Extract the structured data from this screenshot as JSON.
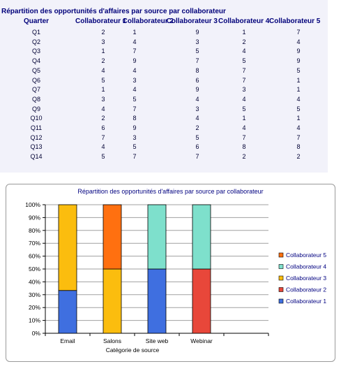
{
  "table": {
    "title": "Répartition des opportunités d'affaires par source par collaborateur",
    "headers": [
      "Quarter",
      "Collaborateur 1",
      "Collaborateur 2",
      "Collaborateur 3",
      "Collaborateur 4",
      "Collaborateur 5"
    ],
    "rows": [
      [
        "Q1",
        "2",
        "1",
        "9",
        "1",
        "7"
      ],
      [
        "Q2",
        "3",
        "4",
        "3",
        "2",
        "4"
      ],
      [
        "Q3",
        "1",
        "7",
        "5",
        "4",
        "9"
      ],
      [
        "Q4",
        "2",
        "9",
        "7",
        "5",
        "9"
      ],
      [
        "Q5",
        "4",
        "4",
        "8",
        "7",
        "5"
      ],
      [
        "Q6",
        "5",
        "3",
        "6",
        "7",
        "1"
      ],
      [
        "Q7",
        "1",
        "4",
        "9",
        "3",
        "1"
      ],
      [
        "Q8",
        "3",
        "5",
        "4",
        "4",
        "4"
      ],
      [
        "Q9",
        "4",
        "7",
        "3",
        "5",
        "5"
      ],
      [
        "Q10",
        "2",
        "8",
        "4",
        "1",
        "1"
      ],
      [
        "Q11",
        "6",
        "9",
        "2",
        "4",
        "4"
      ],
      [
        "Q12",
        "7",
        "3",
        "5",
        "7",
        "7"
      ],
      [
        "Q13",
        "4",
        "5",
        "6",
        "8",
        "8"
      ],
      [
        "Q14",
        "5",
        "7",
        "7",
        "2",
        "2"
      ]
    ]
  },
  "chart_data": {
    "type": "bar",
    "stacked": "percent",
    "title": "Répartition des opportunités d'affaires par source par collaborateur",
    "xlabel": "Catégorie de source",
    "ylabel": "",
    "categories": [
      "Email",
      "Salons",
      "Site web",
      "Webinar",
      ""
    ],
    "ylim": [
      0,
      100
    ],
    "yticks": [
      "0%",
      "10%",
      "20%",
      "30%",
      "40%",
      "50%",
      "60%",
      "70%",
      "80%",
      "90%",
      "100%"
    ],
    "grid": true,
    "legend_position": "right",
    "series": [
      {
        "name": "Collaborateur 1",
        "color": "#3f6fe0",
        "values": [
          33.3,
          0,
          50,
          0,
          0
        ]
      },
      {
        "name": "Collaborateur 2",
        "color": "#e8473a",
        "values": [
          0,
          0,
          0,
          50,
          0
        ]
      },
      {
        "name": "Collaborateur 3",
        "color": "#fbbd0e",
        "values": [
          66.7,
          50,
          0,
          0,
          0
        ]
      },
      {
        "name": "Collaborateur 4",
        "color": "#7ee0cc",
        "values": [
          0,
          0,
          50,
          50,
          0
        ]
      },
      {
        "name": "Collaborateur 5",
        "color": "#ff7010",
        "values": [
          0,
          50,
          0,
          0,
          0
        ]
      }
    ]
  }
}
